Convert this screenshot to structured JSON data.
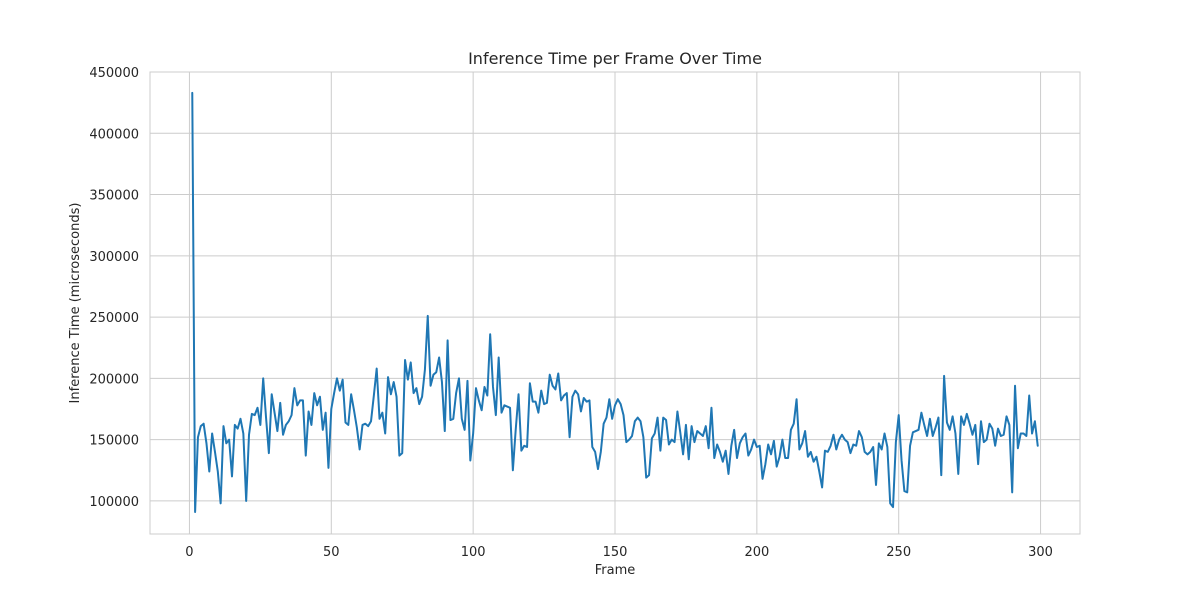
{
  "chart_data": {
    "type": "line",
    "title": "Inference Time per Frame Over Time",
    "xlabel": "Frame",
    "ylabel": "Inference Time (microseconds)",
    "xlim": [
      -13.9,
      313.9
    ],
    "ylim": [
      73000,
      450000
    ],
    "xticks": [
      0,
      50,
      100,
      150,
      200,
      250,
      300
    ],
    "yticks": [
      100000,
      150000,
      200000,
      250000,
      300000,
      350000,
      400000,
      450000
    ],
    "grid": true,
    "legend": "none",
    "series": [
      {
        "color": "#1f77b4",
        "x_start": 1,
        "x_step": 1,
        "values": [
          433000,
          91000,
          152000,
          161000,
          163000,
          147000,
          124000,
          155000,
          140000,
          124000,
          98000,
          161000,
          147000,
          150000,
          120000,
          162000,
          159000,
          167000,
          155000,
          100000,
          154000,
          171000,
          170000,
          176000,
          162000,
          200000,
          168000,
          139000,
          187000,
          172000,
          157000,
          180000,
          154000,
          162000,
          165000,
          170000,
          192000,
          178000,
          182000,
          182000,
          137000,
          173000,
          162000,
          188000,
          178000,
          185000,
          158000,
          172000,
          127000,
          175000,
          188000,
          200000,
          190000,
          199000,
          164000,
          162000,
          187000,
          174000,
          160000,
          142000,
          162000,
          163000,
          161000,
          165000,
          186000,
          208000,
          167000,
          172000,
          155000,
          201000,
          187000,
          197000,
          185000,
          137000,
          139000,
          215000,
          199000,
          213000,
          188000,
          192000,
          179000,
          185000,
          207000,
          251000,
          194000,
          203000,
          205000,
          217000,
          197000,
          157000,
          231000,
          166000,
          167000,
          188000,
          200000,
          167000,
          158000,
          198000,
          133000,
          155000,
          192000,
          182000,
          174000,
          193000,
          186000,
          236000,
          193000,
          170000,
          217000,
          172000,
          178000,
          177000,
          176000,
          125000,
          158000,
          187000,
          141000,
          145000,
          144000,
          196000,
          181000,
          181000,
          172000,
          190000,
          179000,
          180000,
          203000,
          194000,
          191000,
          204000,
          182000,
          186000,
          188000,
          152000,
          185000,
          190000,
          187000,
          173000,
          184000,
          181000,
          182000,
          144000,
          140000,
          126000,
          140000,
          163000,
          168000,
          183000,
          167000,
          178000,
          183000,
          179000,
          170000,
          148000,
          150000,
          153000,
          165000,
          168000,
          165000,
          152000,
          119000,
          121000,
          151000,
          155000,
          168000,
          141000,
          168000,
          166000,
          146000,
          150000,
          148000,
          173000,
          156000,
          138000,
          162000,
          134000,
          161000,
          148000,
          157000,
          155000,
          153000,
          161000,
          143000,
          176000,
          135000,
          146000,
          140000,
          132000,
          141000,
          122000,
          145000,
          158000,
          135000,
          147000,
          152000,
          155000,
          137000,
          142000,
          150000,
          144000,
          145000,
          118000,
          130000,
          146000,
          138000,
          149000,
          128000,
          136000,
          150000,
          135000,
          135000,
          158000,
          163000,
          183000,
          142000,
          147000,
          157000,
          136000,
          140000,
          132000,
          136000,
          124000,
          111000,
          141000,
          140000,
          145000,
          154000,
          142000,
          150000,
          154000,
          150000,
          148000,
          139000,
          146000,
          145000,
          157000,
          152000,
          140000,
          138000,
          140000,
          144000,
          113000,
          147000,
          142000,
          155000,
          144000,
          98000,
          95000,
          148000,
          170000,
          133000,
          108000,
          107000,
          145000,
          156000,
          157000,
          158000,
          172000,
          162000,
          153000,
          167000,
          153000,
          160000,
          168000,
          121000,
          202000,
          164000,
          158000,
          169000,
          155000,
          122000,
          169000,
          162000,
          171000,
          163000,
          154000,
          162000,
          130000,
          165000,
          148000,
          150000,
          163000,
          159000,
          145000,
          159000,
          153000,
          154000,
          169000,
          162000,
          107000,
          194000,
          143000,
          155000,
          155000,
          153000,
          186000,
          155000,
          165000,
          145000
        ]
      }
    ]
  }
}
